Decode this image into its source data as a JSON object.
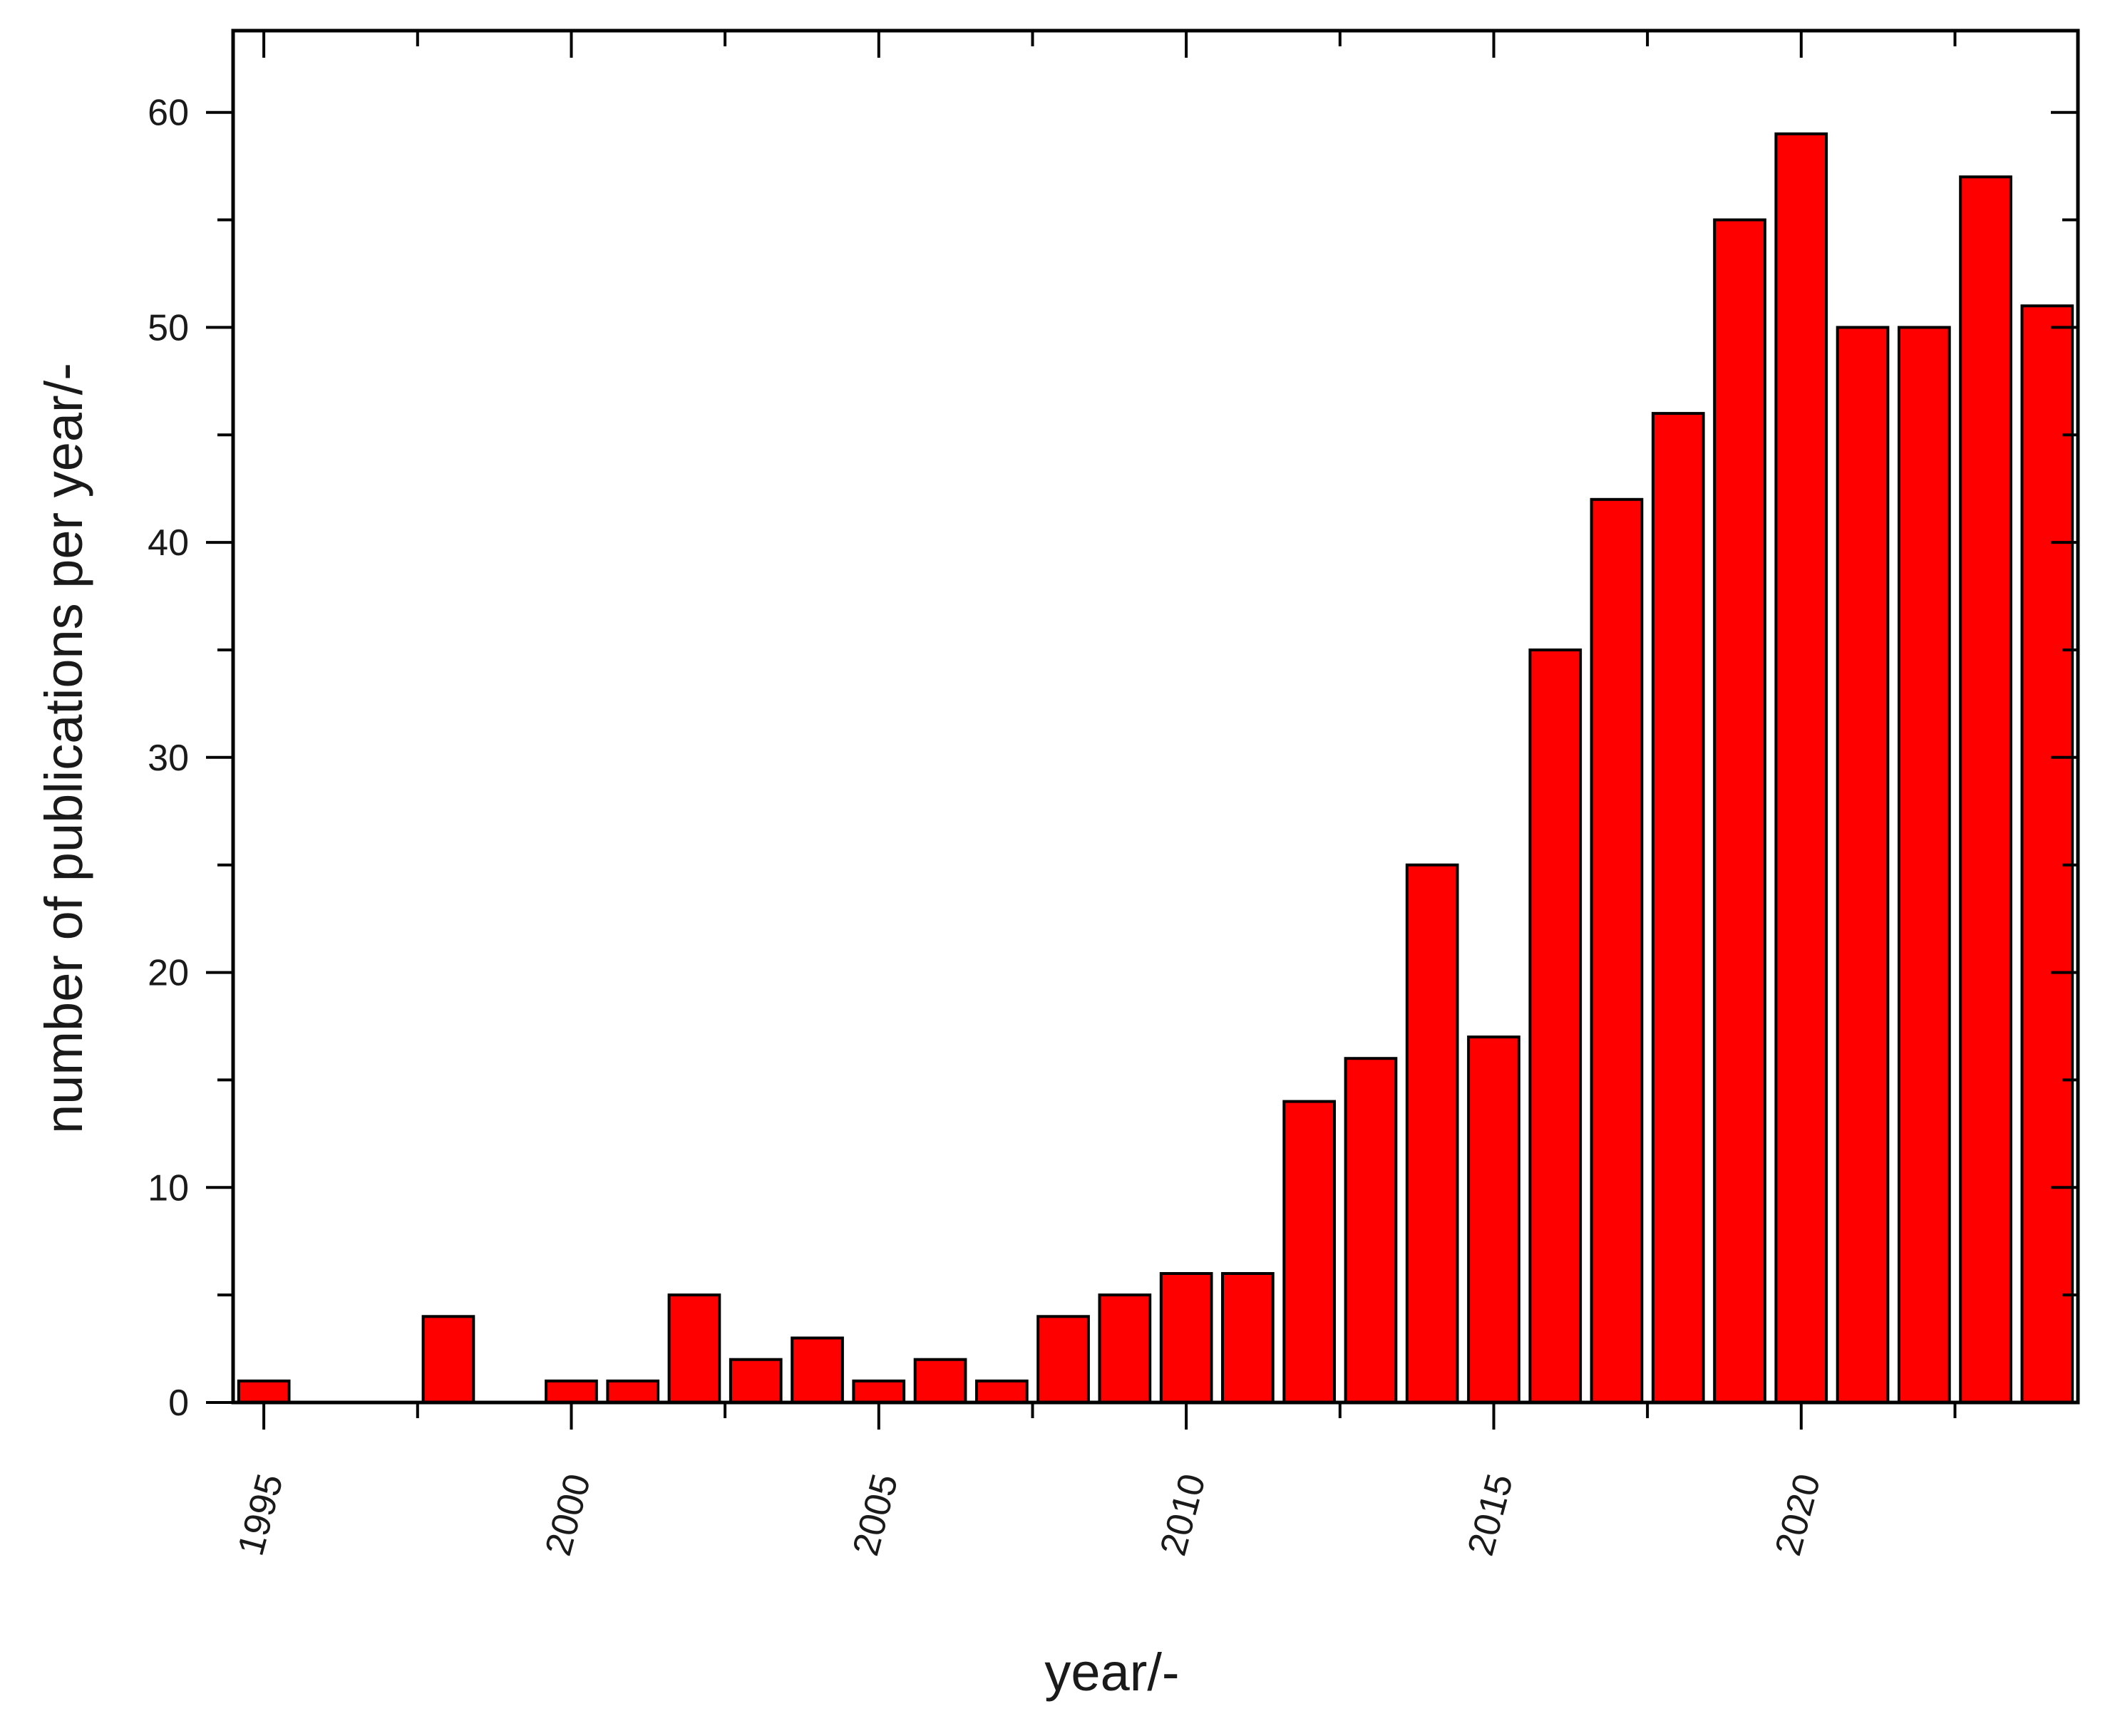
{
  "chart_data": {
    "type": "bar",
    "title": "",
    "xlabel": "year/-",
    "ylabel": "number of publications per year/-",
    "x": [
      1995,
      1998,
      2000,
      2001,
      2002,
      2003,
      2004,
      2005,
      2006,
      2007,
      2008,
      2009,
      2010,
      2011,
      2012,
      2013,
      2014,
      2015,
      2016,
      2017,
      2018,
      2019,
      2020,
      2021,
      2022,
      2023,
      2024
    ],
    "values": [
      1,
      4,
      1,
      1,
      5,
      2,
      3,
      1,
      2,
      1,
      4,
      5,
      6,
      6,
      14,
      16,
      25,
      17,
      35,
      42,
      46,
      55,
      59,
      50,
      50,
      57,
      51
    ],
    "xlim": [
      1994.5,
      2024.5
    ],
    "ylim": [
      0,
      63.8
    ],
    "x_ticks": [
      "1995",
      "2000",
      "2005",
      "2010",
      "2015",
      "2020"
    ],
    "y_ticks": [
      "0",
      "10",
      "20",
      "30",
      "40",
      "50",
      "60"
    ],
    "bar_color": "#ff0000",
    "edge_color": "#000000",
    "grid": false,
    "legend": "none"
  }
}
